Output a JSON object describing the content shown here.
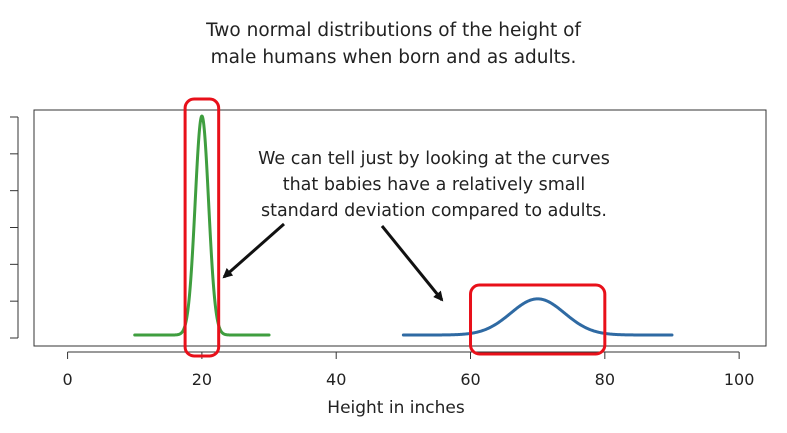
{
  "title": {
    "line1": "Two normal distributions of the height of",
    "line2": "male humans when born and as adults."
  },
  "annotation": {
    "line1": "We can tell just by looking at the curves",
    "line2": "that babies have a relatively small",
    "line3": "standard deviation compared to adults."
  },
  "chart_data": {
    "type": "line",
    "title": "Two normal distributions of the height of male humans when born and as adults.",
    "xlabel": "Height in inches",
    "ylabel": "",
    "xlim": [
      -5,
      104
    ],
    "ylim": [
      0,
      1
    ],
    "x_ticks": [
      0,
      20,
      40,
      60,
      80,
      100
    ],
    "y_tick_count": 7,
    "y_tick_labels_shown": false,
    "grid": false,
    "legend": "none",
    "series": [
      {
        "mean": 20,
        "sd": 1,
        "x_range": [
          10,
          30
        ],
        "color": "#3f9e3f",
        "peak_relative": 1.0
      },
      {
        "mean": 70,
        "sd": 4,
        "x_range": [
          50,
          90
        ],
        "color": "#2f6aa3",
        "peak_relative": 0.165
      }
    ],
    "highlights": [
      {
        "x_range": [
          17.5,
          22.5
        ],
        "covers": "full_height",
        "color": "#e8101a"
      },
      {
        "x_range": [
          60,
          80
        ],
        "covers": "adult_curve",
        "color": "#e8101a"
      }
    ],
    "arrows": [
      {
        "points_to": "babies curve",
        "color": "#111111"
      },
      {
        "points_to": "adults curve",
        "color": "#111111"
      }
    ]
  }
}
